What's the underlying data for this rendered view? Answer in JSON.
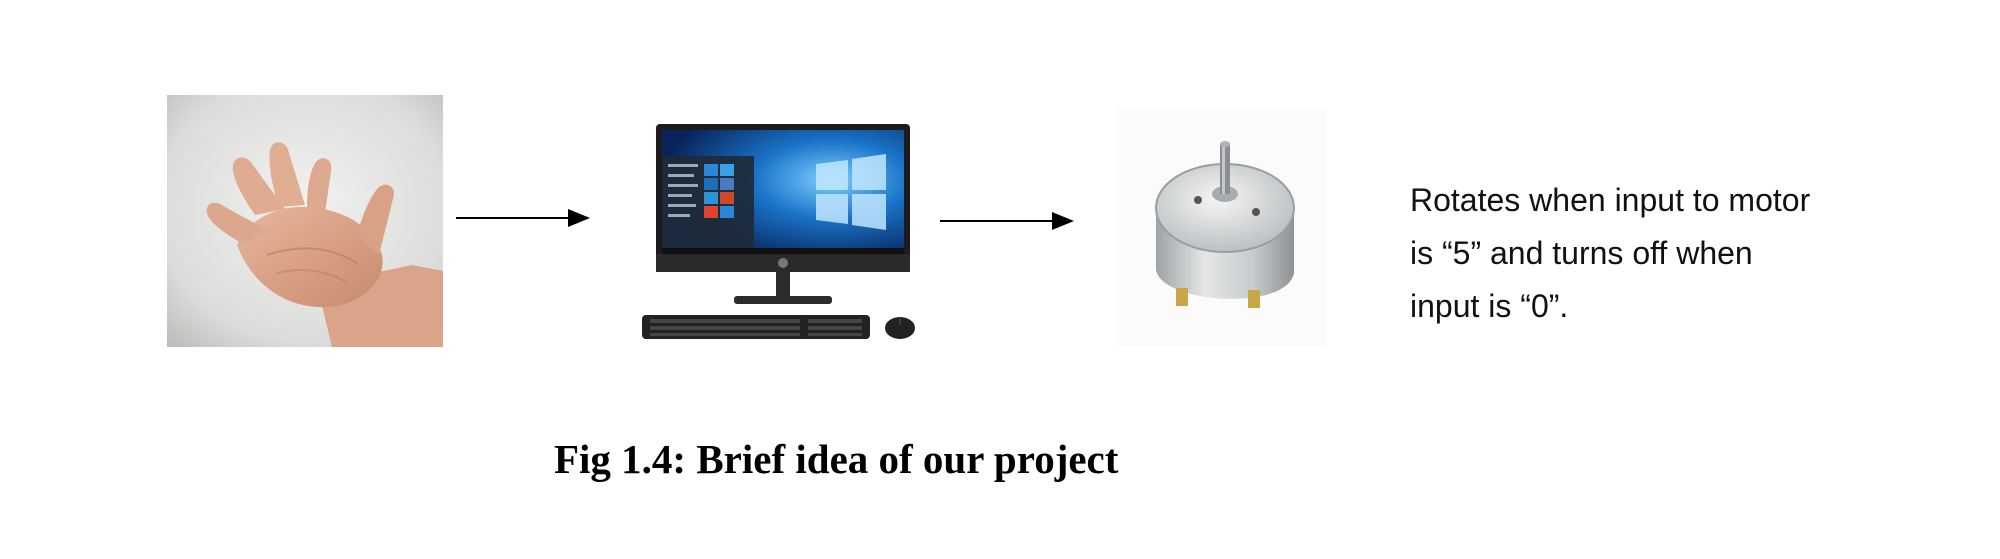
{
  "diagram": {
    "nodes": [
      {
        "id": "hand",
        "icon": "hand-gesture-icon"
      },
      {
        "id": "computer",
        "icon": "desktop-computer-icon"
      },
      {
        "id": "motor",
        "icon": "dc-motor-icon"
      }
    ],
    "edges": [
      {
        "from": "hand",
        "to": "computer"
      },
      {
        "from": "computer",
        "to": "motor"
      }
    ],
    "motor_note": {
      "line1": "Rotates when input to motor",
      "line2": "is “5” and turns off when",
      "line3": "input is “0”."
    },
    "caption": "Fig 1.4: Brief idea of our project"
  },
  "colors": {
    "background": "#ffffff",
    "text": "#111111",
    "arrow": "#000000",
    "windows_blue": "#1a73c8",
    "motor_metal": "#c8ccce"
  }
}
